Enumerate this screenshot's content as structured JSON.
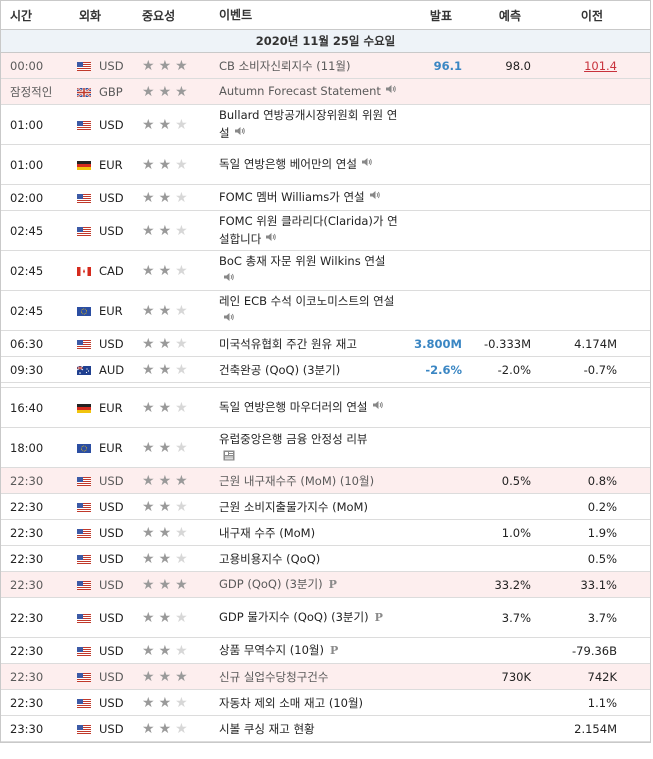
{
  "headers": {
    "time": "시간",
    "currency": "외화",
    "importance": "중요성",
    "event": "이벤트",
    "actual": "발표",
    "forecast": "예측",
    "previous": "이전"
  },
  "date_label": "2020년 11월 25일 수요일",
  "colors": {
    "highlight_row": "#fdeeee",
    "actual_blue": "#3a86c3",
    "previous_red": "#c8323c"
  },
  "rows": [
    {
      "time": "00:00",
      "flag": "us",
      "currency": "USD",
      "stars": 3,
      "event": "CB 소비자신뢰지수 (11월)",
      "actual": "96.1",
      "forecast": "98.0",
      "previous": "101.4",
      "hl": true,
      "icon": ""
    },
    {
      "time": "잠정적인",
      "flag": "gb",
      "currency": "GBP",
      "stars": 3,
      "event": "Autumn Forecast Statement",
      "actual": "",
      "forecast": "",
      "previous": "",
      "hl": true,
      "icon": "speaker-icon"
    },
    {
      "time": "01:00",
      "flag": "us",
      "currency": "USD",
      "stars": 2,
      "event": "Bullard 연방공개시장위원회 위원 연설",
      "actual": "",
      "forecast": "",
      "previous": "",
      "hl": false,
      "icon": "speaker-icon"
    },
    {
      "time": "01:00",
      "flag": "de",
      "currency": "EUR",
      "stars": 2,
      "event": "독일 연방은행 베어만의 연설",
      "actual": "",
      "forecast": "",
      "previous": "",
      "hl": false,
      "icon": "speaker-icon"
    },
    {
      "time": "02:00",
      "flag": "us",
      "currency": "USD",
      "stars": 2,
      "event": "FOMC 멤버 Williams가 연설",
      "actual": "",
      "forecast": "",
      "previous": "",
      "hl": false,
      "icon": "speaker-icon"
    },
    {
      "time": "02:45",
      "flag": "us",
      "currency": "USD",
      "stars": 2,
      "event": "FOMC 위원 클라리다(Clarida)가 연설합니다",
      "actual": "",
      "forecast": "",
      "previous": "",
      "hl": false,
      "icon": "speaker-icon"
    },
    {
      "time": "02:45",
      "flag": "ca",
      "currency": "CAD",
      "stars": 2,
      "event": "BoC 총재 자문 위원 Wilkins 연설",
      "actual": "",
      "forecast": "",
      "previous": "",
      "hl": false,
      "icon": "speaker-icon"
    },
    {
      "time": "02:45",
      "flag": "eu",
      "currency": "EUR",
      "stars": 2,
      "event": "레인 ECB 수석 이코노미스트의 연설",
      "actual": "",
      "forecast": "",
      "previous": "",
      "hl": false,
      "icon": "speaker-icon"
    },
    {
      "time": "06:30",
      "flag": "us",
      "currency": "USD",
      "stars": 2,
      "event": "미국석유협회 주간 원유 재고",
      "actual": "3.800M",
      "forecast": "-0.333M",
      "previous": "4.174M",
      "hl": false,
      "icon": ""
    },
    {
      "time": "09:30",
      "flag": "au",
      "currency": "AUD",
      "stars": 2,
      "event": "건축완공 (QoQ) (3분기)",
      "actual": "-2.6%",
      "forecast": "-2.0%",
      "previous": "-0.7%",
      "hl": false,
      "icon": ""
    },
    {
      "time": "16:40",
      "flag": "de",
      "currency": "EUR",
      "stars": 2,
      "event": "독일 연방은행 마우더러의 연설",
      "actual": "",
      "forecast": "",
      "previous": "",
      "hl": false,
      "icon": "speaker-icon"
    },
    {
      "time": "18:00",
      "flag": "eu",
      "currency": "EUR",
      "stars": 2,
      "event": "유럽중앙은행 금융 안정성 리뷰",
      "actual": "",
      "forecast": "",
      "previous": "",
      "hl": false,
      "icon": "document-icon"
    },
    {
      "time": "22:30",
      "flag": "us",
      "currency": "USD",
      "stars": 3,
      "event": "근원 내구재수주 (MoM) (10월)",
      "actual": "",
      "forecast": "0.5%",
      "previous": "0.8%",
      "hl": true,
      "icon": ""
    },
    {
      "time": "22:30",
      "flag": "us",
      "currency": "USD",
      "stars": 2,
      "event": "근원 소비지출물가지수 (MoM)",
      "actual": "",
      "forecast": "",
      "previous": "0.2%",
      "hl": false,
      "icon": ""
    },
    {
      "time": "22:30",
      "flag": "us",
      "currency": "USD",
      "stars": 2,
      "event": "내구재 수주 (MoM)",
      "actual": "",
      "forecast": "1.0%",
      "previous": "1.9%",
      "hl": false,
      "icon": ""
    },
    {
      "time": "22:30",
      "flag": "us",
      "currency": "USD",
      "stars": 2,
      "event": "고용비용지수 (QoQ)",
      "actual": "",
      "forecast": "",
      "previous": "0.5%",
      "hl": false,
      "icon": ""
    },
    {
      "time": "22:30",
      "flag": "us",
      "currency": "USD",
      "stars": 3,
      "event": "GDP (QoQ) (3분기)",
      "actual": "",
      "forecast": "33.2%",
      "previous": "33.1%",
      "hl": true,
      "icon": "preliminary-icon"
    },
    {
      "time": "22:30",
      "flag": "us",
      "currency": "USD",
      "stars": 2,
      "event": "GDP 물가지수 (QoQ) (3분기)",
      "actual": "",
      "forecast": "3.7%",
      "previous": "3.7%",
      "hl": false,
      "icon": "preliminary-icon"
    },
    {
      "time": "22:30",
      "flag": "us",
      "currency": "USD",
      "stars": 2,
      "event": "상품 무역수지 (10월)",
      "actual": "",
      "forecast": "",
      "previous": "-79.36B",
      "hl": false,
      "icon": "preliminary-icon"
    },
    {
      "time": "22:30",
      "flag": "us",
      "currency": "USD",
      "stars": 3,
      "event": "신규 실업수당청구건수",
      "actual": "",
      "forecast": "730K",
      "previous": "742K",
      "hl": true,
      "icon": ""
    },
    {
      "time": "22:30",
      "flag": "us",
      "currency": "USD",
      "stars": 2,
      "event": "자동차 제외 소매 재고 (10월)",
      "actual": "",
      "forecast": "",
      "previous": "1.1%",
      "hl": false,
      "icon": ""
    },
    {
      "time": "23:30",
      "flag": "us",
      "currency": "USD",
      "stars": 2,
      "event": "시볼 쿠싱 재고 현황",
      "actual": "",
      "forecast": "",
      "previous": "2.154M",
      "hl": false,
      "icon": ""
    }
  ],
  "icon_glyphs": {
    "speaker": "🔊",
    "preliminary": "P",
    "star": "★"
  }
}
